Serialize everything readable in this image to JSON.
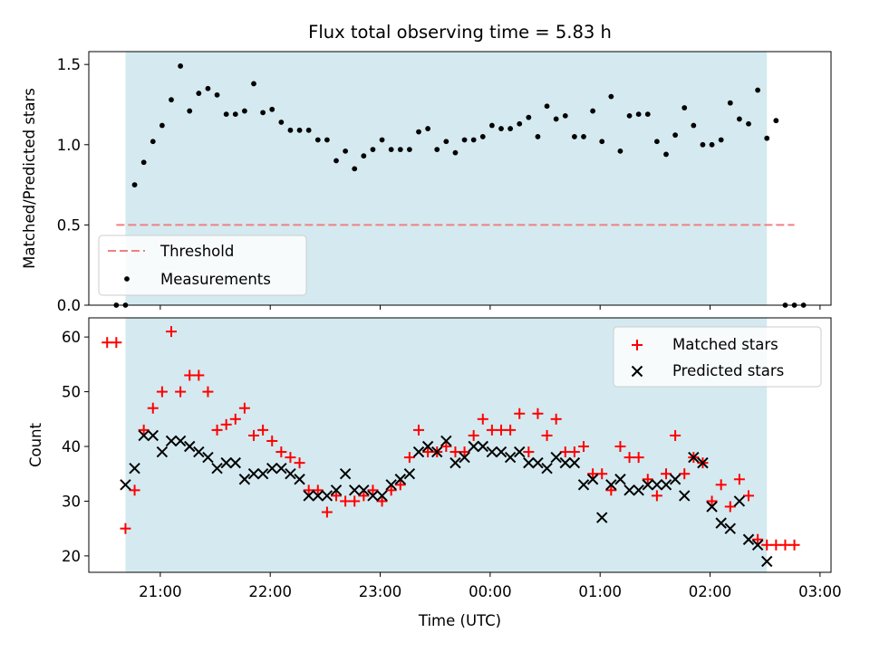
{
  "colors": {
    "observing_span": "#d4eaf0",
    "threshold": "#f08080",
    "measurement": "#000000",
    "matched": "#ff0000",
    "predicted": "#000000"
  },
  "chart_data": [
    {
      "type": "scatter",
      "title": "Flux total observing time = 5.83 h",
      "xlabel": "",
      "ylabel": "Matched/Predicted stars",
      "x_type": "time",
      "xlim": [
        "20:21",
        "03:06"
      ],
      "ylim": [
        0,
        1.58
      ],
      "yticks": [
        0.0,
        0.5,
        1.0,
        1.5
      ],
      "ytick_labels": [
        "0.0",
        "0.5",
        "1.0",
        "1.5"
      ],
      "observing_span": [
        "20:41",
        "02:31"
      ],
      "threshold": {
        "label": "Threshold",
        "y": 0.5,
        "x": [
          "20:36",
          "02:46"
        ]
      },
      "legend": {
        "loc": "lower left",
        "entries": [
          "Threshold",
          "Measurements"
        ]
      },
      "series": [
        {
          "name": "Measurements",
          "marker": "dot",
          "x": [
            "20:36",
            "20:41",
            "20:46",
            "20:51",
            "20:56",
            "21:01",
            "21:06",
            "21:11",
            "21:16",
            "21:21",
            "21:26",
            "21:31",
            "21:36",
            "21:41",
            "21:46",
            "21:51",
            "21:56",
            "22:01",
            "22:06",
            "22:11",
            "22:16",
            "22:21",
            "22:26",
            "22:31",
            "22:36",
            "22:41",
            "22:46",
            "22:51",
            "22:56",
            "23:01",
            "23:06",
            "23:11",
            "23:16",
            "23:21",
            "23:26",
            "23:31",
            "23:36",
            "23:41",
            "23:46",
            "23:51",
            "23:56",
            "00:01",
            "00:06",
            "00:11",
            "00:16",
            "00:21",
            "00:26",
            "00:31",
            "00:36",
            "00:41",
            "00:46",
            "00:51",
            "00:56",
            "01:01",
            "01:06",
            "01:11",
            "01:16",
            "01:21",
            "01:26",
            "01:31",
            "01:36",
            "01:41",
            "01:46",
            "01:51",
            "01:56",
            "02:01",
            "02:06",
            "02:11",
            "02:16",
            "02:21",
            "02:26",
            "02:31",
            "02:36",
            "02:41",
            "02:46",
            "02:51"
          ],
          "y": [
            0.0,
            0.0,
            0.75,
            0.89,
            1.02,
            1.12,
            1.28,
            1.49,
            1.21,
            1.32,
            1.35,
            1.31,
            1.19,
            1.19,
            1.21,
            1.38,
            1.2,
            1.22,
            1.14,
            1.09,
            1.09,
            1.09,
            1.03,
            1.03,
            0.9,
            0.96,
            0.85,
            0.93,
            0.97,
            1.03,
            0.97,
            0.97,
            0.97,
            1.08,
            1.1,
            0.97,
            1.02,
            0.95,
            1.03,
            1.03,
            1.05,
            1.12,
            1.1,
            1.1,
            1.13,
            1.17,
            1.05,
            1.24,
            1.16,
            1.18,
            1.05,
            1.05,
            1.21,
            1.02,
            1.3,
            0.96,
            1.18,
            1.19,
            1.19,
            1.02,
            0.94,
            1.06,
            1.23,
            1.12,
            1.0,
            1.0,
            1.03,
            1.26,
            1.16,
            1.13,
            1.34,
            1.04,
            1.15,
            0.0,
            0.0,
            0.0
          ]
        }
      ]
    },
    {
      "type": "scatter",
      "title": "",
      "xlabel": "Time (UTC)",
      "ylabel": "Count",
      "x_type": "time",
      "xlim": [
        "20:21",
        "03:06"
      ],
      "ylim": [
        17,
        63.5
      ],
      "yticks": [
        20,
        30,
        40,
        50,
        60
      ],
      "ytick_labels": [
        "20",
        "30",
        "40",
        "50",
        "60"
      ],
      "xticks": [
        "21:00",
        "22:00",
        "23:00",
        "00:00",
        "01:00",
        "02:00",
        "03:00"
      ],
      "xtick_labels": [
        "21:00",
        "22:00",
        "23:00",
        "00:00",
        "01:00",
        "02:00",
        "03:00"
      ],
      "observing_span": [
        "20:41",
        "02:31"
      ],
      "legend": {
        "loc": "upper right",
        "entries": [
          "Matched stars",
          "Predicted stars"
        ]
      },
      "series": [
        {
          "name": "Matched stars",
          "marker": "plus",
          "x": [
            "20:31",
            "20:36",
            "20:41",
            "20:46",
            "20:51",
            "20:56",
            "21:01",
            "21:06",
            "21:11",
            "21:16",
            "21:21",
            "21:26",
            "21:31",
            "21:36",
            "21:41",
            "21:46",
            "21:51",
            "21:56",
            "22:01",
            "22:06",
            "22:11",
            "22:16",
            "22:21",
            "22:26",
            "22:31",
            "22:36",
            "22:41",
            "22:46",
            "22:51",
            "22:56",
            "23:01",
            "23:06",
            "23:11",
            "23:16",
            "23:21",
            "23:26",
            "23:31",
            "23:36",
            "23:41",
            "23:46",
            "23:51",
            "23:56",
            "00:01",
            "00:06",
            "00:11",
            "00:16",
            "00:21",
            "00:26",
            "00:31",
            "00:36",
            "00:41",
            "00:46",
            "00:51",
            "00:56",
            "01:01",
            "01:06",
            "01:11",
            "01:16",
            "01:21",
            "01:26",
            "01:31",
            "01:36",
            "01:41",
            "01:46",
            "01:51",
            "01:56",
            "02:01",
            "02:06",
            "02:11",
            "02:16",
            "02:21",
            "02:26",
            "02:31",
            "02:36",
            "02:41",
            "02:46"
          ],
          "y": [
            59,
            59,
            25,
            32,
            43,
            47,
            50,
            61,
            50,
            53,
            53,
            50,
            43,
            44,
            45,
            47,
            42,
            43,
            41,
            39,
            38,
            37,
            32,
            32,
            28,
            31,
            30,
            30,
            31,
            32,
            30,
            32,
            33,
            38,
            43,
            39,
            39,
            40,
            39,
            39,
            42,
            45,
            43,
            43,
            43,
            46,
            39,
            46,
            42,
            45,
            39,
            39,
            40,
            35,
            35,
            32,
            40,
            38,
            38,
            34,
            31,
            35,
            42,
            35,
            38,
            37,
            30,
            33,
            29,
            34,
            31,
            23,
            22,
            22,
            22,
            22
          ]
        },
        {
          "name": "Predicted stars",
          "marker": "x",
          "x": [
            "20:41",
            "20:46",
            "20:51",
            "20:56",
            "21:01",
            "21:06",
            "21:11",
            "21:16",
            "21:21",
            "21:26",
            "21:31",
            "21:36",
            "21:41",
            "21:46",
            "21:51",
            "21:56",
            "22:01",
            "22:06",
            "22:11",
            "22:16",
            "22:21",
            "22:26",
            "22:31",
            "22:36",
            "22:41",
            "22:46",
            "22:51",
            "22:56",
            "23:01",
            "23:06",
            "23:11",
            "23:16",
            "23:21",
            "23:26",
            "23:31",
            "23:36",
            "23:41",
            "23:46",
            "23:51",
            "23:56",
            "00:01",
            "00:06",
            "00:11",
            "00:16",
            "00:21",
            "00:26",
            "00:31",
            "00:36",
            "00:41",
            "00:46",
            "00:51",
            "00:56",
            "01:01",
            "01:06",
            "01:11",
            "01:16",
            "01:21",
            "01:26",
            "01:31",
            "01:36",
            "01:41",
            "01:46",
            "01:51",
            "01:56",
            "02:01",
            "02:06",
            "02:11",
            "02:16",
            "02:21",
            "02:26",
            "02:31"
          ],
          "y": [
            33,
            36,
            42,
            42,
            39,
            41,
            41,
            40,
            39,
            38,
            36,
            37,
            37,
            34,
            35,
            35,
            36,
            36,
            35,
            34,
            31,
            31,
            31,
            32,
            35,
            32,
            32,
            31,
            31,
            33,
            34,
            35,
            39,
            40,
            39,
            41,
            37,
            38,
            40,
            40,
            39,
            39,
            38,
            39,
            37,
            37,
            36,
            38,
            37,
            37,
            33,
            34,
            27,
            33,
            34,
            32,
            32,
            33,
            33,
            33,
            34,
            31,
            38,
            37,
            29,
            26,
            25,
            30,
            23,
            22,
            19
          ]
        }
      ]
    }
  ]
}
